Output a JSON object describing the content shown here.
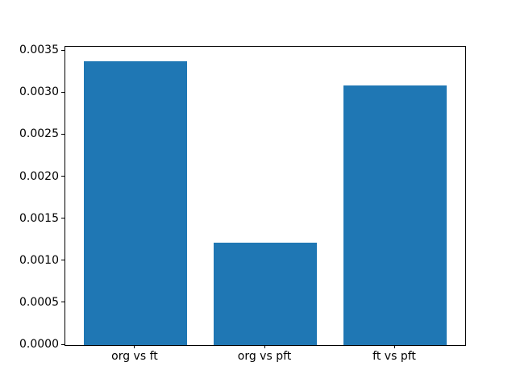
{
  "chart_data": {
    "type": "bar",
    "title": "",
    "xlabel": "",
    "ylabel": "",
    "categories": [
      "org vs ft",
      "org vs pft",
      "ft vs pft"
    ],
    "values": [
      0.00338,
      0.00122,
      0.00309
    ],
    "ylim": [
      0,
      0.00355
    ],
    "yticks": [
      0.0,
      0.0005,
      0.001,
      0.0015,
      0.002,
      0.0025,
      0.003,
      0.0035
    ],
    "ytick_labels": [
      "0.0000",
      "0.0005",
      "0.0010",
      "0.0015",
      "0.0020",
      "0.0025",
      "0.0030",
      "0.0035"
    ],
    "bar_color": "#1f77b4",
    "axis_color": "#000000",
    "background_color": "#ffffff",
    "grid": false,
    "legend": null,
    "bar_width_fraction": 0.8
  }
}
